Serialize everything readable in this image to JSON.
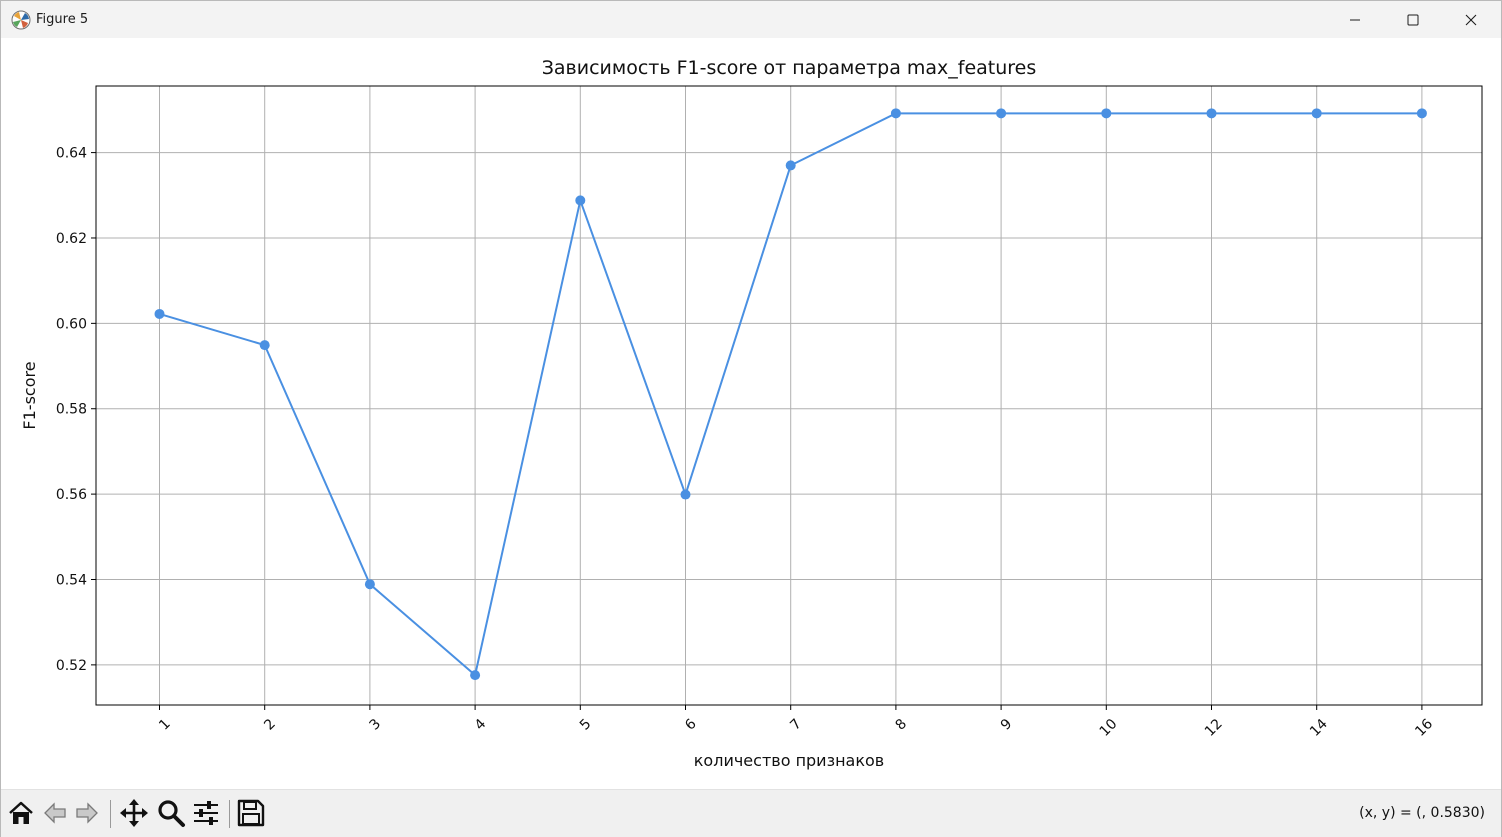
{
  "window": {
    "title": "Figure 5",
    "icon": "matplotlib-icon",
    "controls": [
      "minimize-icon",
      "maximize-icon",
      "close-icon"
    ]
  },
  "toolbar": {
    "buttons": [
      {
        "name": "home-button",
        "icon": "home-icon"
      },
      {
        "name": "back-button",
        "icon": "arrow-left-icon"
      },
      {
        "name": "forward-button",
        "icon": "arrow-right-icon"
      },
      {
        "name": "pan-button",
        "icon": "move-icon"
      },
      {
        "name": "zoom-button",
        "icon": "magnifier-icon"
      },
      {
        "name": "configure-subplots-button",
        "icon": "sliders-icon"
      },
      {
        "name": "save-button",
        "icon": "floppy-disk-icon"
      }
    ],
    "coords": "(x, y) = (, 0.5830)"
  },
  "chart_data": {
    "type": "line",
    "title": "Зависимость F1-score от параметра max_features",
    "xlabel": "количество признаков",
    "ylabel": "F1-score",
    "categories": [
      "1",
      "2",
      "3",
      "4",
      "5",
      "6",
      "7",
      "8",
      "9",
      "10",
      "12",
      "14",
      "16"
    ],
    "series": [
      {
        "values": [
          0.6022,
          0.5949,
          0.5389,
          0.5176,
          0.6288,
          0.5599,
          0.637,
          0.6492,
          0.6492,
          0.6492,
          0.6492,
          0.6492,
          0.6492
        ],
        "color": "#4a90e2",
        "marker": "circle"
      }
    ],
    "yticks": [
      "0.52",
      "0.54",
      "0.56",
      "0.58",
      "0.60",
      "0.62",
      "0.64"
    ],
    "ylim": [
      0.5106,
      0.6556
    ],
    "grid": true,
    "xtick_rotation": 45
  }
}
